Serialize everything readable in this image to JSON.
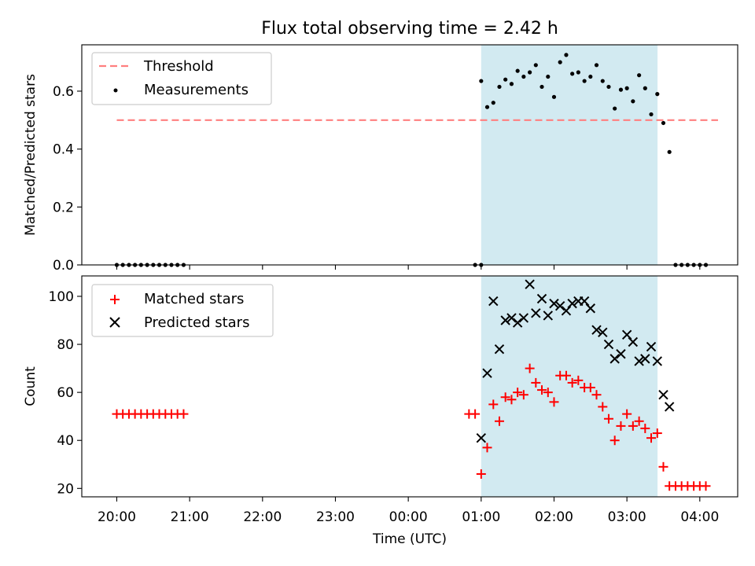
{
  "title": "Flux total observing time = 2.42 h",
  "xlabel": "Time (UTC)",
  "x_ticks": [
    "20:00",
    "21:00",
    "22:00",
    "23:00",
    "00:00",
    "01:00",
    "02:00",
    "03:00",
    "04:00"
  ],
  "colors": {
    "threshold": "#ff7f7f",
    "measurements": "#000000",
    "matched": "#ff0000",
    "predicted": "#000000",
    "observing_window": "#add8e6"
  },
  "chart_data": [
    {
      "type": "scatter",
      "ylabel": "Matched/Predicted stars",
      "x_unit": "hours since 20:00 UTC",
      "xlim": [
        -0.48,
        8.52
      ],
      "ylim": [
        0,
        0.76
      ],
      "y_ticks": [
        "0.0",
        "0.2",
        "0.4",
        "0.6"
      ],
      "legend_position": "top-left",
      "shaded_window": [
        5.0,
        7.42
      ],
      "threshold": {
        "name": "Threshold",
        "y": 0.5,
        "x_range": [
          0,
          8.25
        ]
      },
      "series": [
        {
          "name": "Measurements",
          "marker": "dot",
          "x": [
            0,
            0.083,
            0.167,
            0.25,
            0.333,
            0.417,
            0.5,
            0.583,
            0.667,
            0.75,
            0.833,
            0.917,
            4.917,
            5.0,
            5.0,
            5.083,
            5.167,
            5.25,
            5.333,
            5.417,
            5.5,
            5.583,
            5.667,
            5.75,
            5.833,
            5.917,
            6.0,
            6.083,
            6.167,
            6.25,
            6.333,
            6.417,
            6.5,
            6.583,
            6.667,
            6.75,
            6.833,
            6.917,
            7.0,
            7.083,
            7.167,
            7.25,
            7.333,
            7.417,
            7.5,
            7.583,
            7.667,
            7.75,
            7.833,
            7.917,
            8.0,
            8.083
          ],
          "y": [
            0,
            0,
            0,
            0,
            0,
            0,
            0,
            0,
            0,
            0,
            0,
            0,
            0,
            0,
            0.635,
            0.545,
            0.56,
            0.615,
            0.64,
            0.625,
            0.67,
            0.65,
            0.665,
            0.69,
            0.615,
            0.65,
            0.58,
            0.7,
            0.725,
            0.66,
            0.665,
            0.635,
            0.65,
            0.69,
            0.635,
            0.615,
            0.54,
            0.605,
            0.61,
            0.565,
            0.655,
            0.61,
            0.52,
            0.59,
            0.49,
            0.39,
            0,
            0,
            0,
            0,
            0,
            0
          ]
        }
      ]
    },
    {
      "type": "scatter",
      "ylabel": "Count",
      "x_unit": "hours since 20:00 UTC",
      "xlim": [
        -0.48,
        8.52
      ],
      "ylim": [
        16.5,
        108.5
      ],
      "y_ticks": [
        "20",
        "40",
        "60",
        "80",
        "100"
      ],
      "legend_position": "top-left",
      "shaded_window": [
        5.0,
        7.42
      ],
      "series": [
        {
          "name": "Matched stars",
          "marker": "plus",
          "x": [
            0,
            0.083,
            0.167,
            0.25,
            0.333,
            0.417,
            0.5,
            0.583,
            0.667,
            0.75,
            0.833,
            0.917,
            4.833,
            4.917,
            5.0,
            5.083,
            5.167,
            5.25,
            5.333,
            5.417,
            5.5,
            5.583,
            5.667,
            5.75,
            5.833,
            5.917,
            6.0,
            6.083,
            6.167,
            6.25,
            6.333,
            6.417,
            6.5,
            6.583,
            6.667,
            6.75,
            6.833,
            6.917,
            7.0,
            7.083,
            7.167,
            7.25,
            7.333,
            7.417,
            7.5,
            7.583,
            7.667,
            7.75,
            7.833,
            7.917,
            8.0,
            8.083
          ],
          "y": [
            51,
            51,
            51,
            51,
            51,
            51,
            51,
            51,
            51,
            51,
            51,
            51,
            51,
            51,
            26,
            37,
            55,
            48,
            58,
            57,
            60,
            59,
            70,
            64,
            61,
            60,
            56,
            67,
            67,
            64,
            65,
            62,
            62,
            59,
            54,
            49,
            40,
            46,
            51,
            46,
            48,
            45,
            41,
            43,
            29,
            21,
            21,
            21,
            21,
            21,
            21,
            21
          ]
        },
        {
          "name": "Predicted stars",
          "marker": "x",
          "x": [
            5.0,
            5.083,
            5.167,
            5.25,
            5.333,
            5.417,
            5.5,
            5.583,
            5.667,
            5.75,
            5.833,
            5.917,
            6.0,
            6.083,
            6.167,
            6.25,
            6.333,
            6.417,
            6.5,
            6.583,
            6.667,
            6.75,
            6.833,
            6.917,
            7.0,
            7.083,
            7.167,
            7.25,
            7.333,
            7.417,
            7.5,
            7.583
          ],
          "y": [
            41,
            68,
            98,
            78,
            90,
            91,
            89,
            91,
            105,
            93,
            99,
            92,
            97,
            96,
            94,
            97,
            98,
            98,
            95,
            86,
            85,
            80,
            74,
            76,
            84,
            81,
            73,
            74,
            79,
            73,
            59,
            54
          ]
        }
      ]
    }
  ]
}
